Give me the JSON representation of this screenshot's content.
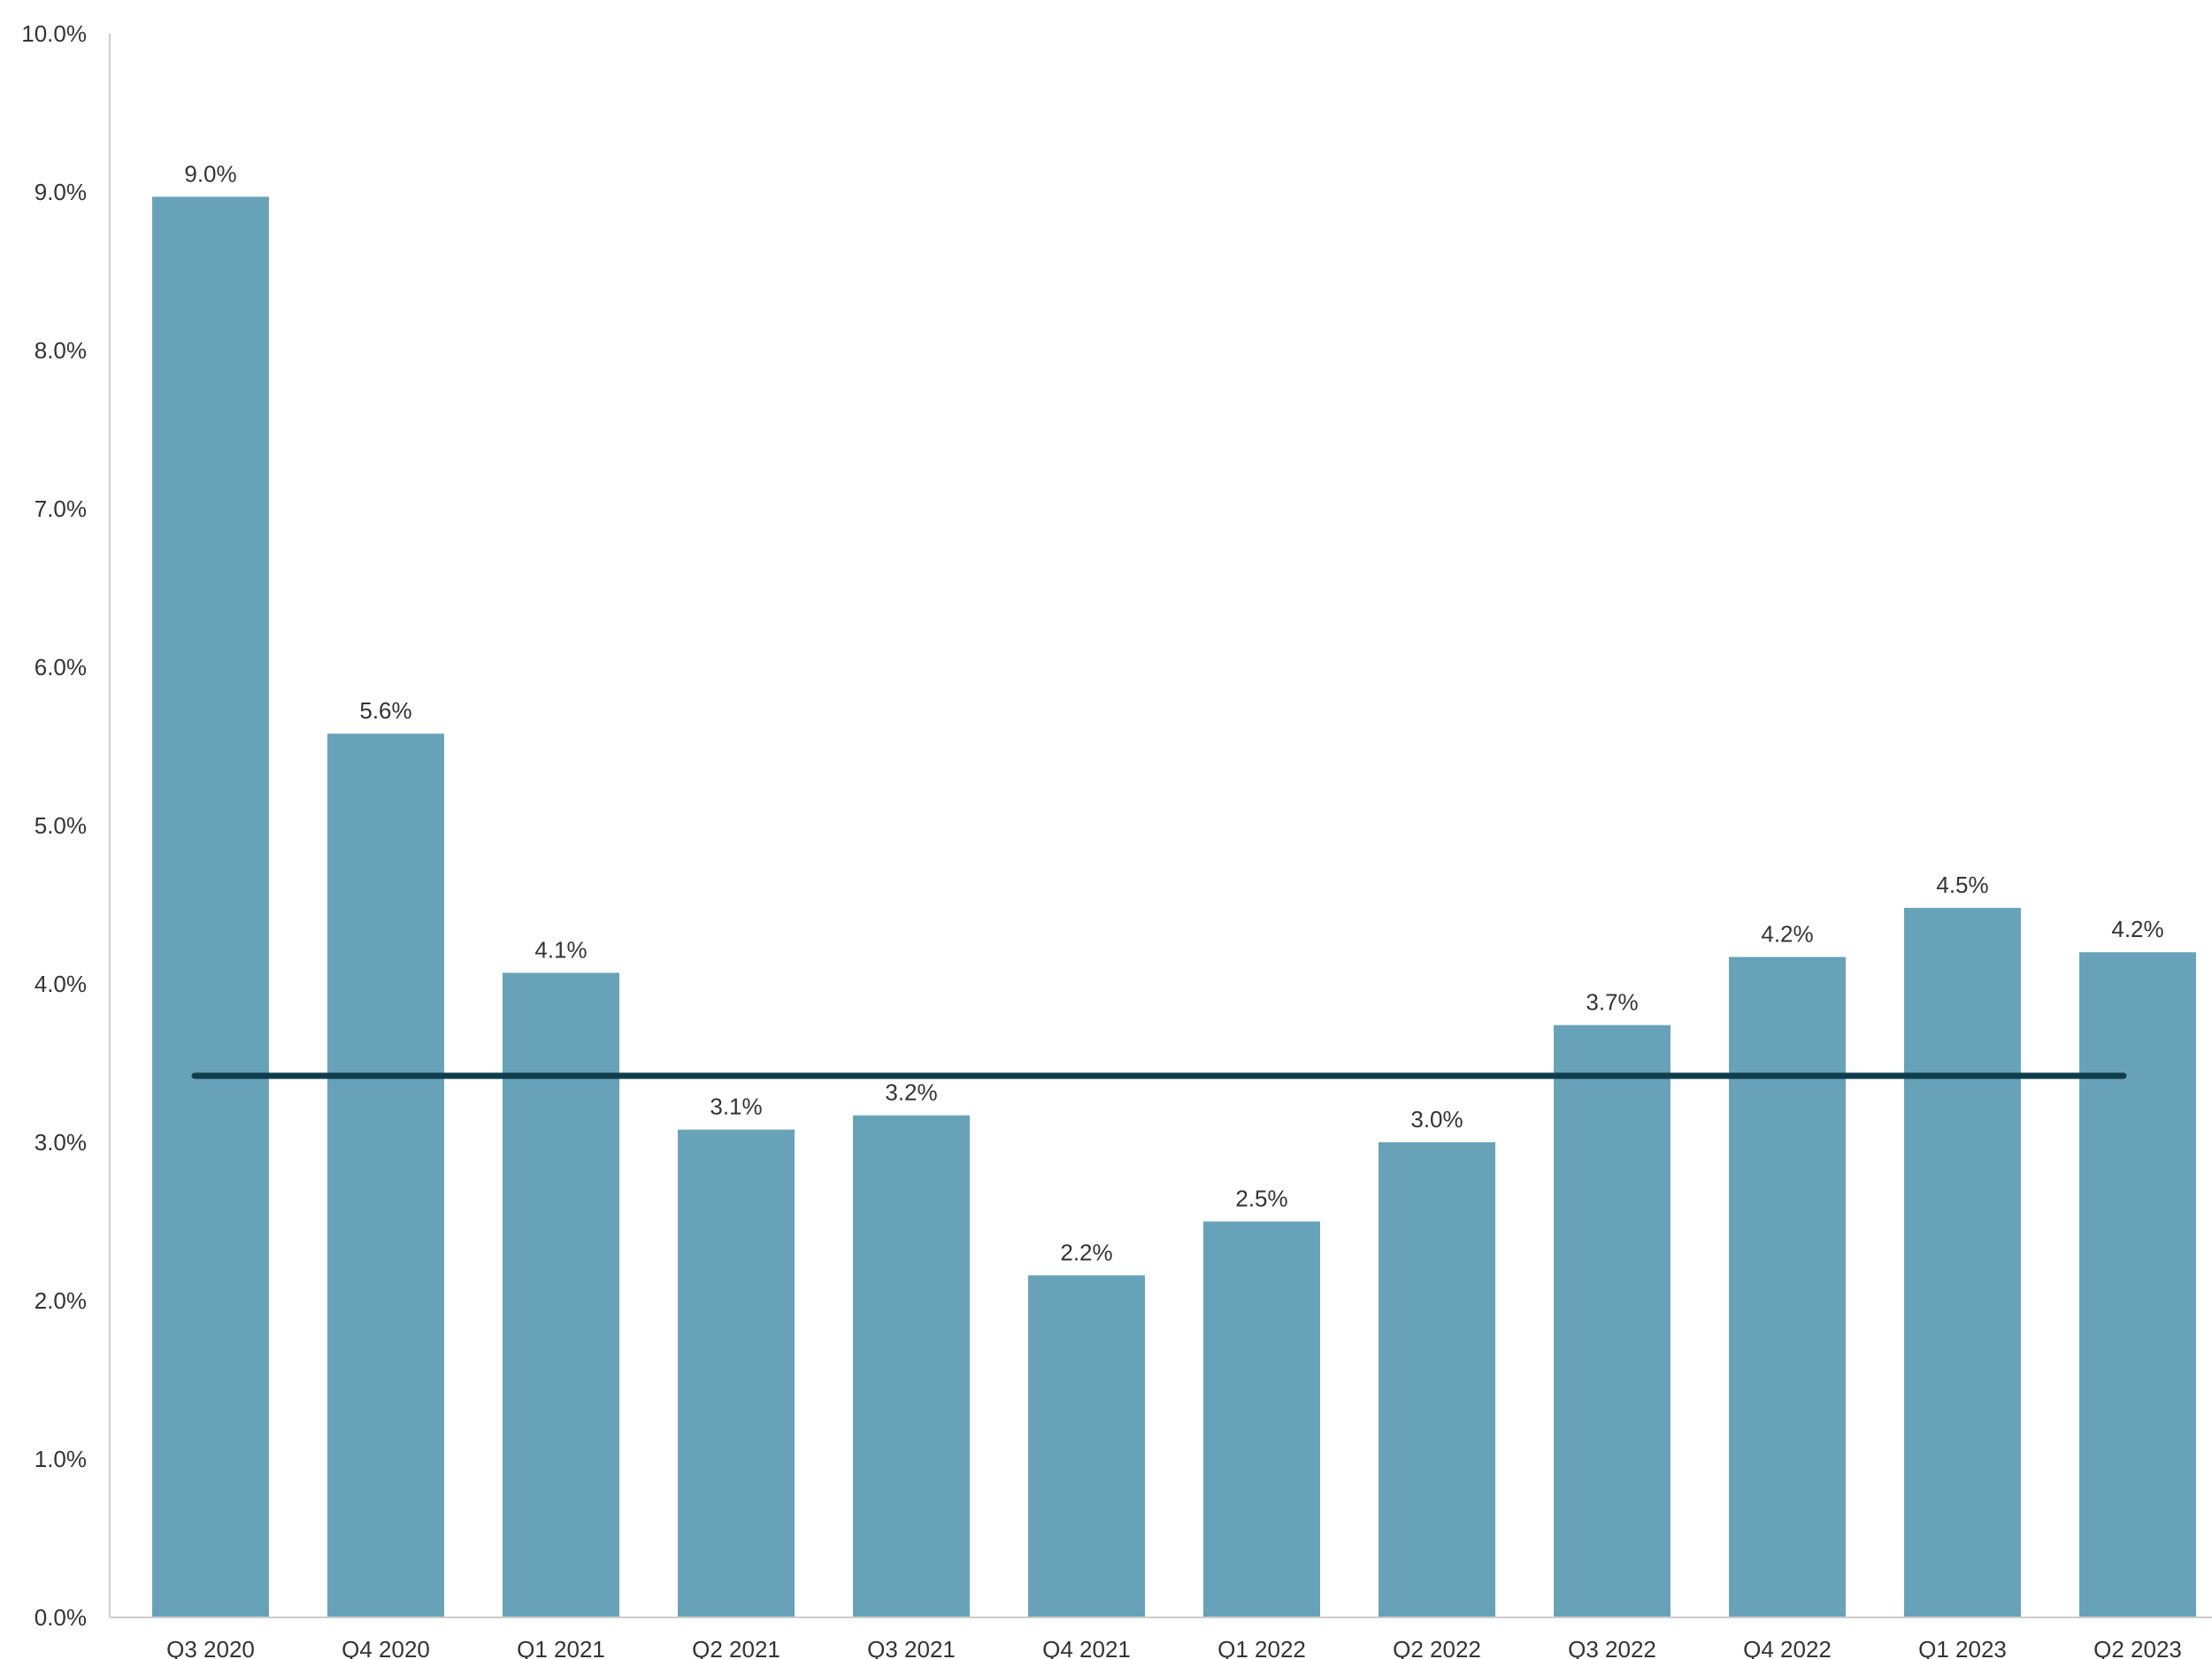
{
  "chart_data": {
    "type": "bar",
    "title": "",
    "xlabel": "",
    "ylabel": "",
    "categories": [
      "Q3 2020",
      "Q4 2020",
      "Q1 2021",
      "Q2 2021",
      "Q3 2021",
      "Q4 2021",
      "Q1 2022",
      "Q2 2022",
      "Q3 2022",
      "Q4 2022",
      "Q1 2023",
      "Q2 2023"
    ],
    "series": [
      {
        "values": [
          8.97,
          5.58,
          4.07,
          3.08,
          3.17,
          2.16,
          2.5,
          3.0,
          3.74,
          4.17,
          4.48,
          4.2
        ],
        "data_labels": [
          "9.0%",
          "5.6%",
          "4.1%",
          "3.1%",
          "3.2%",
          "2.2%",
          "2.5%",
          "3.0%",
          "3.7%",
          "4.2%",
          "4.5%",
          "4.2%"
        ],
        "color": "#68a2b9"
      }
    ],
    "reference_line": {
      "value": 3.42,
      "color": "#0f3d4c"
    },
    "ylim": [
      0,
      10
    ],
    "y_ticks": [
      0,
      1,
      2,
      3,
      4,
      5,
      6,
      7,
      8,
      9,
      10
    ],
    "y_tick_labels": [
      "0.0%",
      "1.0%",
      "2.0%",
      "3.0%",
      "4.0%",
      "5.0%",
      "6.0%",
      "7.0%",
      "8.0%",
      "9.0%",
      "10.0%"
    ],
    "grid": false,
    "legend": "none",
    "axis_color": "#cccccc"
  }
}
